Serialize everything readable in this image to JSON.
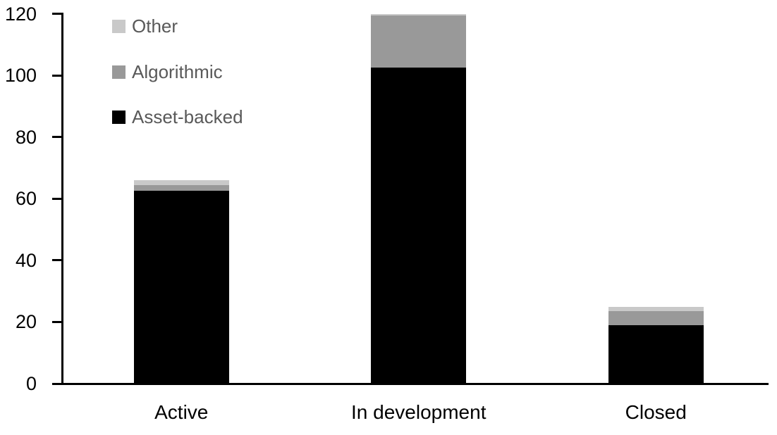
{
  "chart_data": {
    "type": "bar",
    "stacked": true,
    "title": "",
    "xlabel": "",
    "ylabel": "",
    "categories": [
      "Active",
      "In development",
      "Closed"
    ],
    "series": [
      {
        "name": "Asset-backed",
        "color": "#000000",
        "values": [
          62.5,
          102.5,
          19
        ]
      },
      {
        "name": "Algorithmic",
        "color": "#999999",
        "values": [
          2,
          17,
          4.5
        ]
      },
      {
        "name": "Other",
        "color": "#c9c9c9",
        "values": [
          1.5,
          0.5,
          1.5
        ]
      }
    ],
    "totals": [
      66,
      120,
      25
    ],
    "ylim": [
      0,
      120
    ],
    "yticks": [
      "0",
      "20",
      "40",
      "60",
      "80",
      "100",
      "120"
    ],
    "grid": false,
    "legend_position": "top-left",
    "legend_order": [
      "Other",
      "Algorithmic",
      "Asset-backed"
    ],
    "colors": {
      "axis": "#000000",
      "tick_label": "#000000",
      "category_label": "#000000",
      "legend_text": "#595959",
      "background": "#ffffff"
    }
  }
}
